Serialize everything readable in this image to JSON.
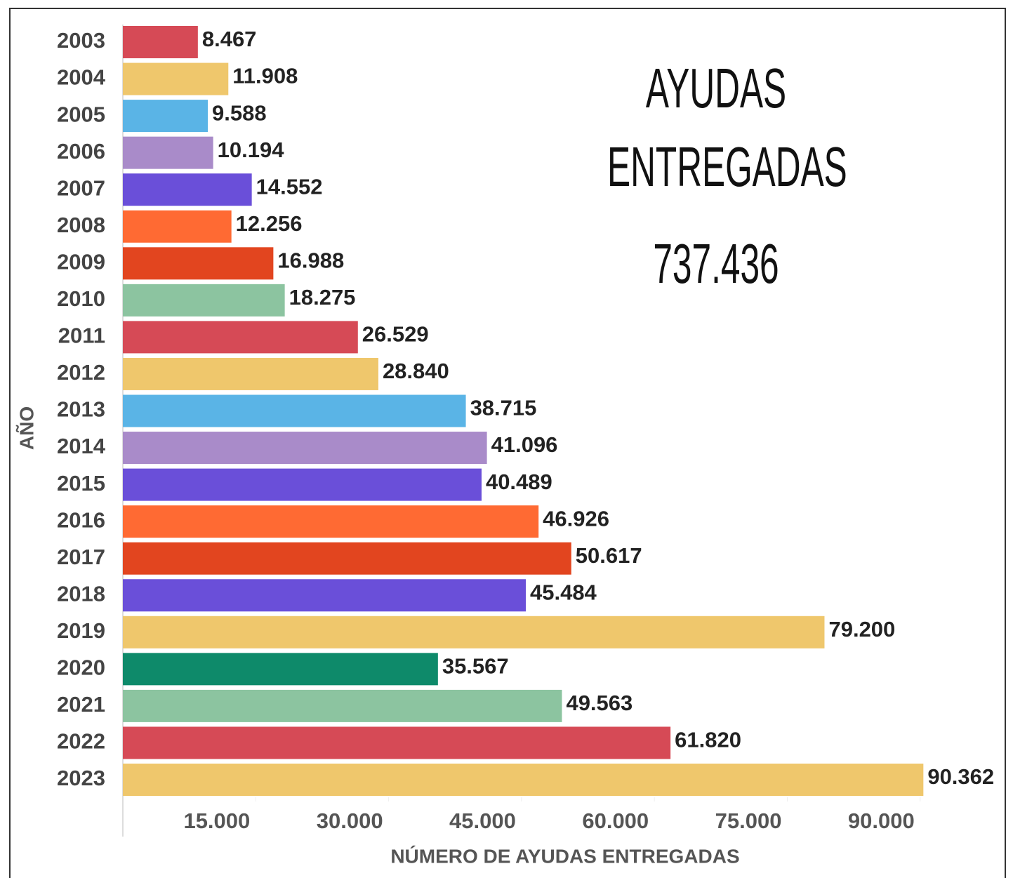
{
  "chart_data": {
    "type": "bar",
    "orientation": "horizontal",
    "title": "AYUDAS ENTREGADAS",
    "annotation": "737.436",
    "x_label": "NÚMERO DE AYUDAS ENTREGADAS",
    "y_label": "AÑO",
    "categories": [
      "2003",
      "2004",
      "2005",
      "2006",
      "2007",
      "2008",
      "2009",
      "2010",
      "2011",
      "2012",
      "2013",
      "2014",
      "2015",
      "2016",
      "2017",
      "2018",
      "2019",
      "2020",
      "2021",
      "2022",
      "2023"
    ],
    "values": [
      8467,
      11908,
      9588,
      10194,
      14552,
      12256,
      16988,
      18275,
      26529,
      28840,
      38715,
      41096,
      40489,
      46926,
      50617,
      45484,
      79200,
      35567,
      49563,
      61820,
      90362
    ],
    "value_labels": [
      "8.467",
      "11.908",
      "9.588",
      "10.194",
      "14.552",
      "12.256",
      "16.988",
      "18.275",
      "26.529",
      "28.840",
      "38.715",
      "41.096",
      "40.489",
      "46.926",
      "50.617",
      "45.484",
      "79.200",
      "35.567",
      "49.563",
      "61.820",
      "90.362"
    ],
    "colors": [
      "#d64a56",
      "#efc76c",
      "#5ab4e6",
      "#a98bc9",
      "#6a4fd9",
      "#ff6a33",
      "#e2451f",
      "#8cc4a0",
      "#d64a56",
      "#efc76c",
      "#5ab4e6",
      "#a98bc9",
      "#6a4fd9",
      "#ff6a33",
      "#e2451f",
      "#6a4fd9",
      "#efc76c",
      "#0e8a6a",
      "#8cc4a0",
      "#d64a56",
      "#efc76c"
    ],
    "xlim": [
      0,
      92000
    ],
    "xticks": [
      {
        "value": 15000,
        "label": "15.000"
      },
      {
        "value": 30000,
        "label": "30.000"
      },
      {
        "value": 45000,
        "label": "45.000"
      },
      {
        "value": 60000,
        "label": "60.000"
      },
      {
        "value": 75000,
        "label": "75.000"
      },
      {
        "value": 90000,
        "label": "90.000"
      }
    ],
    "grid": false
  }
}
